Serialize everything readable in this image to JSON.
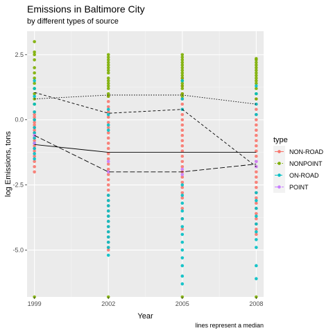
{
  "chart_data": {
    "type": "scatter",
    "title": "Emissions in Baltimore City",
    "subtitle": "by different types of source",
    "xlabel": "Year",
    "ylabel": "log Emissions, tons",
    "caption": "lines represent a median",
    "x_ticks": [
      1999,
      2002,
      2005,
      2008
    ],
    "y_ticks": [
      {
        "value": 2.5,
        "label": "2.5"
      },
      {
        "value": 0,
        "label": "0.0"
      },
      {
        "value": -2.5,
        "label": "-2.5"
      },
      {
        "value": -5,
        "label": "-5.0"
      }
    ],
    "xlim": [
      1998.7,
      2008.3
    ],
    "ylim": [
      -6.8,
      3.4
    ],
    "grid": true,
    "legend": {
      "title": "type",
      "position": "right"
    },
    "series": [
      {
        "name": "NON-ROAD",
        "color": "#F8766D",
        "line_style": "solid",
        "median": [
          -0.95,
          -1.25,
          -1.25,
          -1.25
        ],
        "points": {
          "1999": [
            -2.0,
            -1.8,
            -1.6,
            -1.4,
            -1.2,
            -1.1,
            -1.0,
            -0.9,
            -0.8,
            -0.7,
            -0.6,
            -0.5,
            -0.4,
            -0.3,
            -0.2,
            -0.1,
            0.0,
            0.1,
            0.2,
            0.3
          ],
          "2002": [
            -5.0,
            -4.9,
            -4.7,
            -4.5,
            -4.3,
            -4.1,
            -3.9,
            -3.7,
            -3.5,
            -3.3,
            -3.1,
            -2.9,
            -2.7,
            -2.5,
            -2.3,
            -2.1,
            -1.9,
            -1.7,
            -1.5,
            -1.3,
            -1.1,
            -0.9,
            -0.7,
            -0.5,
            -0.3,
            -0.1,
            0.1,
            0.3,
            0.5,
            0.7,
            0.9
          ],
          "2005": [
            -4.2,
            -3.8,
            -3.4,
            -3.0,
            -2.8,
            -2.6,
            -2.4,
            -2.2,
            -2.0,
            -1.8,
            -1.6,
            -1.4,
            -1.2,
            -1.0,
            -0.8,
            -0.6,
            -0.4,
            -0.2,
            0.0,
            0.2,
            0.4,
            0.6,
            0.8,
            1.0,
            1.3,
            1.6
          ],
          "2008": [
            -4.4,
            -4.2,
            -4.0,
            -3.8,
            -3.6,
            -3.4,
            -3.2,
            -3.0,
            -2.8,
            -2.6,
            -2.4,
            -2.2,
            -2.0,
            -1.8,
            -1.6,
            -1.4,
            -1.2,
            -1.0,
            -0.8,
            -0.6,
            -0.4,
            -0.2,
            0.0,
            0.2,
            0.4,
            0.6,
            0.8
          ]
        }
      },
      {
        "name": "NONPOINT",
        "color": "#7CAE00",
        "line_style": "dotted",
        "median": [
          0.8,
          0.95,
          0.95,
          0.6
        ],
        "points": {
          "1999": [
            3.0,
            2.6,
            2.5,
            2.3,
            2.0,
            1.8,
            1.6,
            1.4,
            1.2,
            1.0,
            0.8,
            0.6,
            -6.8
          ],
          "2002": [
            2.5,
            2.4,
            2.3,
            2.2,
            2.1,
            2.0,
            1.9,
            1.8,
            1.6,
            1.5,
            1.4,
            1.3,
            1.2,
            1.0,
            0.9,
            -6.8
          ],
          "2005": [
            2.5,
            2.4,
            2.3,
            2.2,
            2.1,
            2.0,
            1.9,
            1.8,
            1.7,
            1.6,
            1.5,
            1.4,
            1.3,
            1.2,
            1.0,
            0.9,
            -6.8
          ],
          "2008": [
            2.35,
            2.3,
            2.2,
            2.1,
            2.0,
            1.9,
            1.8,
            1.7,
            1.6,
            1.5,
            1.4,
            1.2,
            1.0,
            0.8,
            -6.8
          ]
        }
      },
      {
        "name": "ON-ROAD",
        "color": "#00BFC4",
        "line_style": "dashed",
        "median": [
          1.05,
          0.25,
          0.4,
          -1.8
        ],
        "points": {
          "1999": [
            -1.5,
            -1.3,
            -1.1,
            -0.9,
            -0.7,
            -0.5,
            -0.3,
            0.0,
            0.3,
            0.6,
            0.9,
            1.2,
            1.5
          ],
          "2002": [
            -5.2,
            -4.9,
            -4.7,
            -4.5,
            -4.3,
            -4.1,
            -3.9,
            -3.7,
            -3.5,
            -3.3,
            -3.1,
            -2.9,
            -0.4,
            -0.2,
            0.2,
            0.4
          ],
          "2005": [
            -6.3,
            -6.0,
            -5.6,
            -5.3,
            -5.0,
            -4.7,
            -4.4,
            -4.1,
            -3.8,
            -3.5,
            -3.2,
            -2.9,
            -2.5,
            0.4,
            0.8,
            1.5
          ],
          "2008": [
            -6.1,
            -5.6,
            -4.9,
            -4.6,
            -4.3,
            -4.0,
            -3.7,
            -3.4,
            -3.1,
            -2.8,
            0.2,
            0.6,
            1.0,
            1.3
          ]
        }
      },
      {
        "name": "POINT",
        "color": "#C77CFF",
        "line_style": "longdash",
        "median": [
          -0.6,
          -2.0,
          -2.0,
          -1.7
        ],
        "points": {
          "1999": [
            -0.9,
            -0.6
          ],
          "2002": [
            -2.0,
            -1.6
          ],
          "2005": [
            -2.1,
            -1.9
          ],
          "2008": [
            -1.8,
            -1.6
          ]
        }
      }
    ]
  }
}
